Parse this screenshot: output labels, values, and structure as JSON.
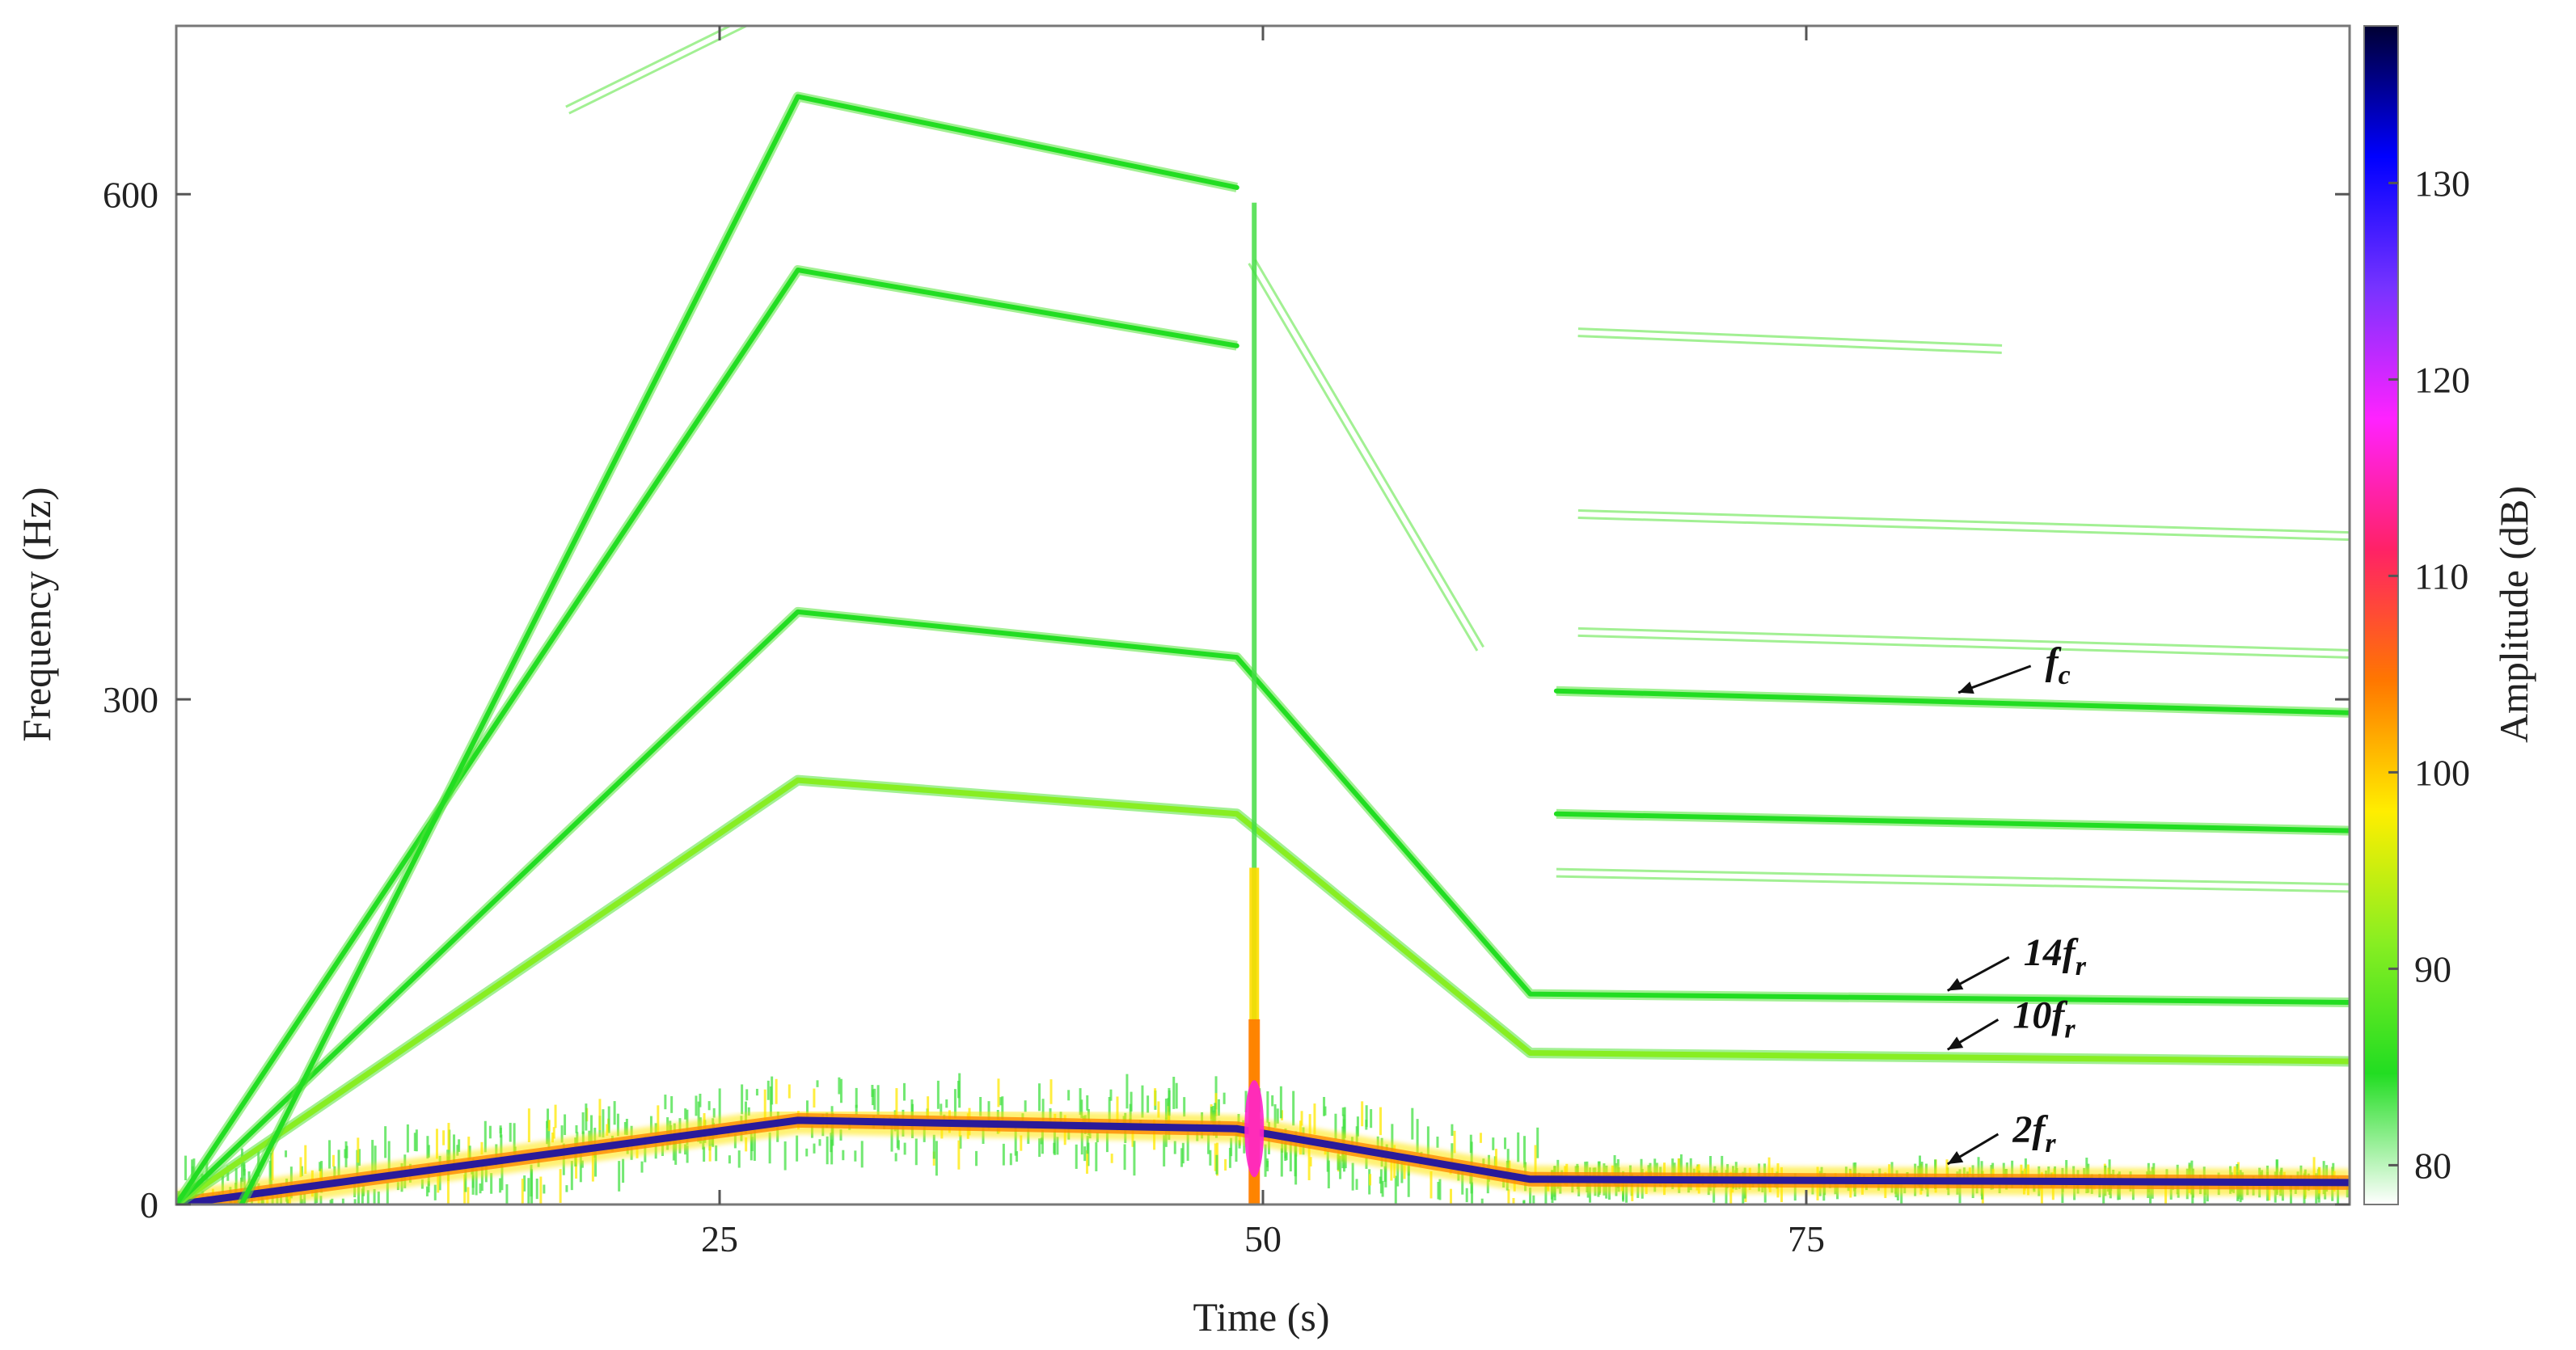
{
  "chart_data": {
    "type": "heatmap",
    "subtype": "spectrogram",
    "title": "",
    "xlabel": "Time (s)",
    "ylabel": "Frequency (Hz)",
    "colorbar_label": "Amplitude (dB)",
    "xlim": [
      0,
      100
    ],
    "ylim": [
      0,
      700
    ],
    "clim": [
      78,
      138
    ],
    "xticks": [
      25,
      50,
      75
    ],
    "yticks": [
      0,
      300,
      600
    ],
    "colorbar_ticks": [
      80,
      90,
      100,
      110,
      120,
      130
    ],
    "grid": false,
    "colormap": [
      "#ffffff",
      "#22dd22",
      "#88ee22",
      "#ffee00",
      "#ff7700",
      "#ff2266",
      "#ff22ff",
      "#7733ff",
      "#0000ff",
      "#000033"
    ],
    "series": [
      {
        "name": "2fr",
        "x": [
          0,
          28.6,
          48.8,
          62.3,
          100
        ],
        "y": [
          0,
          50,
          45,
          15,
          13
        ],
        "level": 135
      },
      {
        "name": "10fr",
        "x": [
          0,
          28.6,
          48.8,
          62.3,
          100
        ],
        "y": [
          0,
          252,
          232,
          90,
          85
        ],
        "level": 92
      },
      {
        "name": "14fr",
        "x": [
          0,
          28.6,
          48.8,
          62.3,
          100
        ],
        "y": [
          0,
          352,
          325,
          125,
          120
        ],
        "level": 86
      },
      {
        "name": "h1",
        "x": [
          0,
          28.6,
          48.8
        ],
        "y": [
          0,
          555,
          510
        ],
        "level": 85
      },
      {
        "name": "h2",
        "x": [
          3,
          28.6,
          48.8
        ],
        "y": [
          0,
          658,
          604
        ],
        "level": 82
      },
      {
        "name": "h3",
        "x": [
          18,
          29
        ],
        "y": [
          650,
          720
        ],
        "level": 81
      },
      {
        "name": "fc",
        "x": [
          63.5,
          100
        ],
        "y": [
          305,
          292
        ],
        "level": 82
      },
      {
        "name": "h4",
        "x": [
          63.5,
          100
        ],
        "y": [
          232,
          222
        ],
        "level": 82
      },
      {
        "name": "h5",
        "x": [
          63.5,
          100
        ],
        "y": [
          197,
          188
        ],
        "level": 81
      },
      {
        "name": "h6",
        "x": [
          64.5,
          100
        ],
        "y": [
          340,
          327
        ],
        "level": 81
      },
      {
        "name": "h7",
        "x": [
          64.5,
          100
        ],
        "y": [
          410,
          397
        ],
        "level": 81
      },
      {
        "name": "h8",
        "x": [
          64.5,
          84
        ],
        "y": [
          518,
          508
        ],
        "level": 81
      },
      {
        "name": "d1",
        "x": [
          49.5,
          60
        ],
        "y": [
          560,
          330
        ],
        "level": 81
      }
    ],
    "annotations": [
      {
        "base": "f",
        "sub": "c",
        "x": 86,
        "y": 315,
        "arrow_to": [
          82,
          304
        ]
      },
      {
        "base": "14f",
        "sub": "r",
        "x": 85,
        "y": 142,
        "arrow_to": [
          81.5,
          127
        ]
      },
      {
        "base": "10f",
        "sub": "r",
        "x": 84.5,
        "y": 105,
        "arrow_to": [
          81.5,
          92
        ]
      },
      {
        "base": "2f",
        "sub": "r",
        "x": 84.5,
        "y": 37,
        "arrow_to": [
          81.5,
          24
        ]
      }
    ]
  }
}
